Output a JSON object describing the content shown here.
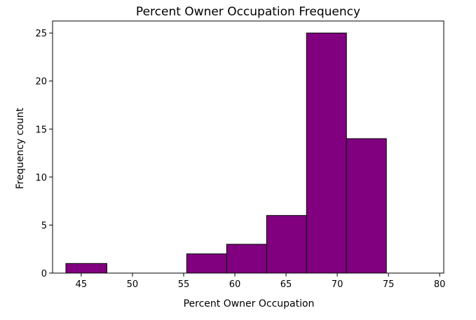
{
  "chart_data": {
    "type": "bar",
    "title": "Percent Owner Occupation Frequency",
    "xlabel": "Percent Owner Occupation",
    "ylabel": "Frequency count",
    "xlim": [
      42.2,
      80.4
    ],
    "ylim": [
      0,
      26.25
    ],
    "xticks": [
      45,
      50,
      55,
      60,
      65,
      70,
      75,
      80
    ],
    "yticks": [
      0,
      5,
      10,
      15,
      20,
      25
    ],
    "bins": [
      {
        "start": 43.5,
        "end": 47.5,
        "count": 1
      },
      {
        "start": 47.5,
        "end": 51.4,
        "count": 0
      },
      {
        "start": 51.4,
        "end": 55.3,
        "count": 0
      },
      {
        "start": 55.3,
        "end": 59.2,
        "count": 2
      },
      {
        "start": 59.2,
        "end": 63.1,
        "count": 3
      },
      {
        "start": 63.1,
        "end": 67.0,
        "count": 6
      },
      {
        "start": 67.0,
        "end": 70.9,
        "count": 25
      },
      {
        "start": 70.9,
        "end": 74.8,
        "count": 14
      }
    ],
    "bar_color": "#800080",
    "edge_color": "#000000",
    "grid": false
  }
}
